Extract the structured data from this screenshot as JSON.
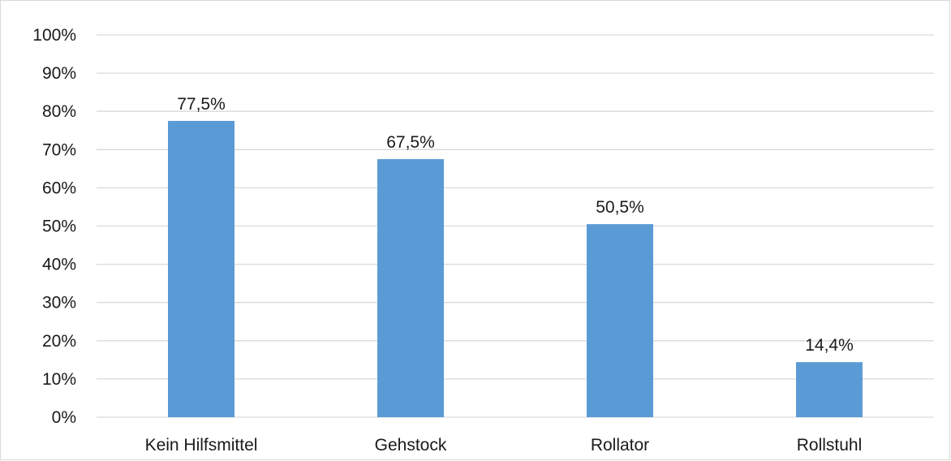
{
  "chart_data": {
    "type": "bar",
    "categories": [
      "Kein Hilfsmittel",
      "Gehstock",
      "Rollator",
      "Rollstuhl"
    ],
    "values": [
      77.5,
      67.5,
      50.5,
      14.4
    ],
    "data_labels": [
      "77,5%",
      "67,5%",
      "50,5%",
      "14,4%"
    ],
    "y_ticks": [
      "0%",
      "10%",
      "20%",
      "30%",
      "40%",
      "50%",
      "60%",
      "70%",
      "80%",
      "90%",
      "100%"
    ],
    "ylim": [
      0,
      100
    ],
    "y_unit": "%",
    "grid": true,
    "legend": "none",
    "title": "",
    "xlabel": "",
    "ylabel": "",
    "colors": {
      "bar": "#5b9bd5",
      "grid": "#d9d9d9",
      "text": "#1a1a1a"
    }
  }
}
